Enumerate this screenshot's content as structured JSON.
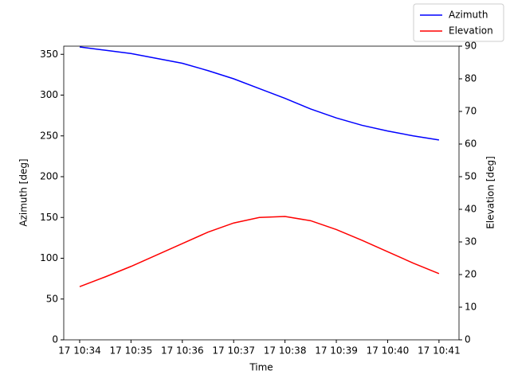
{
  "chart_data": {
    "type": "line",
    "x_label": "Time",
    "y_label": "Azimuth [deg]",
    "y2_label": "Elevation [deg]",
    "x": [
      634,
      634.5,
      635,
      635.5,
      636,
      636.5,
      637,
      637.5,
      638,
      638.5,
      639,
      639.5,
      640,
      640.5,
      641
    ],
    "xlim": [
      633.69,
      641.39
    ],
    "xticks": [
      {
        "value": 634,
        "label": "17 10:34"
      },
      {
        "value": 635,
        "label": "17 10:35"
      },
      {
        "value": 636,
        "label": "17 10:36"
      },
      {
        "value": 637,
        "label": "17 10:37"
      },
      {
        "value": 638,
        "label": "17 10:38"
      },
      {
        "value": 639,
        "label": "17 10:39"
      },
      {
        "value": 640,
        "label": "17 10:40"
      },
      {
        "value": 641,
        "label": "17 10:41"
      }
    ],
    "ylim": [
      0,
      360
    ],
    "yticks": [
      0,
      50,
      100,
      150,
      200,
      250,
      300,
      350
    ],
    "y2lim": [
      0,
      90
    ],
    "y2ticks": [
      0,
      10,
      20,
      30,
      40,
      50,
      60,
      70,
      80,
      90
    ],
    "legend": "upper right",
    "series": [
      {
        "name": "Azimuth",
        "color": "#0000ff",
        "values": [
          359,
          355,
          351,
          345,
          339,
          330,
          320,
          308,
          296,
          283,
          272,
          263,
          256,
          250,
          245
        ]
      },
      {
        "name": "Elevation",
        "color": "#ff0000",
        "axis": "y2",
        "values": [
          16.3,
          19.3,
          22.5,
          26,
          29.5,
          33,
          35.8,
          37.5,
          37.8,
          36.5,
          33.8,
          30.5,
          27,
          23.5,
          20.3
        ]
      }
    ]
  }
}
